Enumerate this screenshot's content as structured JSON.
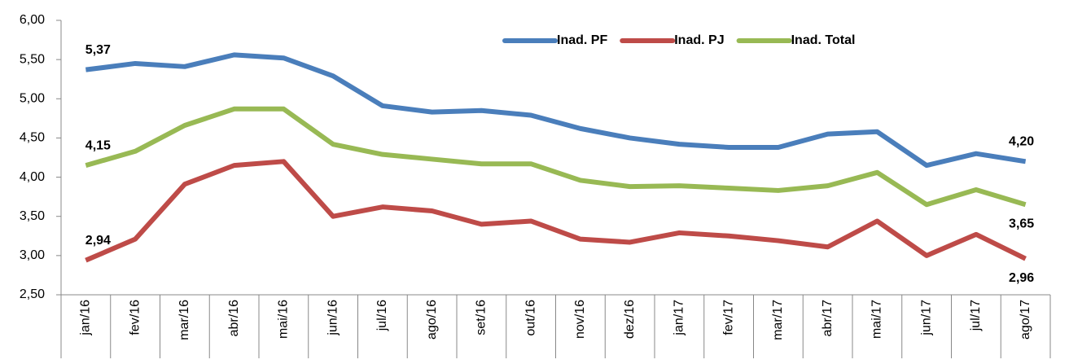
{
  "chart_data": {
    "type": "line",
    "categories": [
      "jan/16",
      "fev/16",
      "mar/16",
      "abr/16",
      "mai/16",
      "jun/16",
      "jul/16",
      "ago/16",
      "set/16",
      "out/16",
      "nov/16",
      "dez/16",
      "jan/17",
      "fev/17",
      "mar/17",
      "abr/17",
      "mai/17",
      "jun/17",
      "jul/17",
      "ago/17"
    ],
    "series": [
      {
        "name": "Inad. PF",
        "color": "#4a7ebb",
        "values": [
          5.37,
          5.45,
          5.41,
          5.56,
          5.52,
          5.29,
          4.91,
          4.83,
          4.85,
          4.79,
          4.62,
          4.5,
          4.42,
          4.38,
          4.38,
          4.55,
          4.58,
          4.15,
          4.3,
          4.2
        ],
        "value_labels": [
          "5,37",
          null,
          null,
          null,
          null,
          null,
          null,
          null,
          null,
          null,
          null,
          null,
          null,
          null,
          null,
          null,
          null,
          null,
          null,
          "4,20"
        ]
      },
      {
        "name": "Inad. PJ",
        "color": "#be4b48",
        "values": [
          2.94,
          3.21,
          3.91,
          4.15,
          4.2,
          3.5,
          3.62,
          3.57,
          3.4,
          3.44,
          3.21,
          3.17,
          3.29,
          3.25,
          3.19,
          3.11,
          3.44,
          3.0,
          3.27,
          2.96
        ],
        "value_labels": [
          "2,94",
          null,
          null,
          null,
          null,
          null,
          null,
          null,
          null,
          null,
          null,
          null,
          null,
          null,
          null,
          null,
          null,
          null,
          null,
          "2,96"
        ]
      },
      {
        "name": "Inad. Total",
        "color": "#98b954",
        "values": [
          4.15,
          4.33,
          4.66,
          4.87,
          4.87,
          4.42,
          4.29,
          4.23,
          4.17,
          4.17,
          3.96,
          3.88,
          3.89,
          3.86,
          3.83,
          3.89,
          4.06,
          3.65,
          3.84,
          3.65
        ],
        "value_labels": [
          "4,15",
          null,
          null,
          null,
          null,
          null,
          null,
          null,
          null,
          null,
          null,
          null,
          null,
          null,
          null,
          null,
          null,
          null,
          null,
          "3,65"
        ]
      }
    ],
    "ylim": [
      2.5,
      6.0
    ],
    "yticks": [
      {
        "value": 2.5,
        "label": "2,50"
      },
      {
        "value": 3.0,
        "label": "3,00"
      },
      {
        "value": 3.5,
        "label": "3,50"
      },
      {
        "value": 4.0,
        "label": "4,00"
      },
      {
        "value": 4.5,
        "label": "4,50"
      },
      {
        "value": 5.0,
        "label": "5,00"
      },
      {
        "value": 5.5,
        "label": "5,50"
      },
      {
        "value": 6.0,
        "label": "6,00"
      }
    ],
    "grid": false,
    "legend": "top-right"
  }
}
